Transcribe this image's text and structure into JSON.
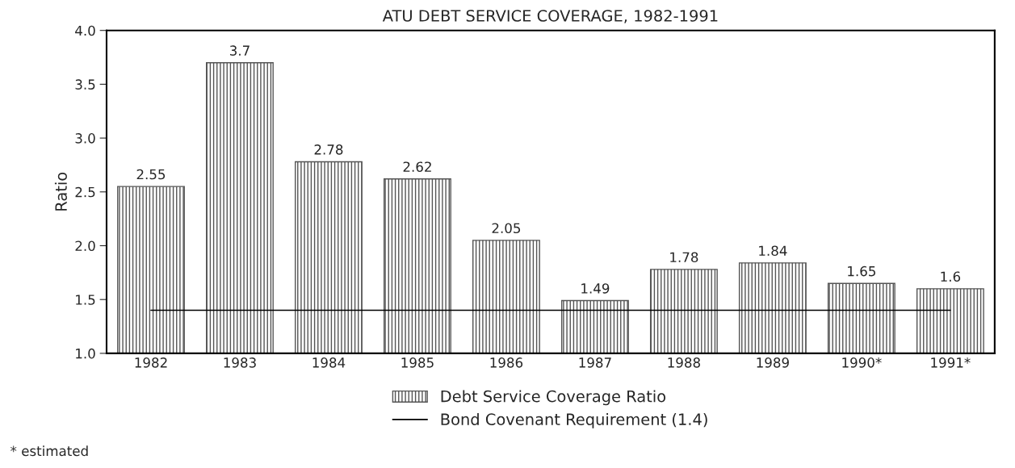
{
  "chart_data": {
    "type": "bar",
    "title": "ATU DEBT SERVICE COVERAGE, 1982-1991",
    "ylabel": "Ratio",
    "categories": [
      "1982",
      "1983",
      "1984",
      "1985",
      "1986",
      "1987",
      "1988",
      "1989",
      "1990*",
      "1991*"
    ],
    "series": [
      {
        "name": "Debt Service Coverage Ratio",
        "color": "#555555",
        "values": [
          2.55,
          3.7,
          2.78,
          2.62,
          2.05,
          1.49,
          1.78,
          1.84,
          1.65,
          1.6
        ],
        "value_labels": [
          "2.55",
          "3.7",
          "2.78",
          "2.62",
          "2.05",
          "1.49",
          "1.78",
          "1.84",
          "1.65",
          "1.6"
        ]
      },
      {
        "name": "Bond Covenant Requirement (1.4)",
        "type": "line",
        "color": "#000000",
        "values": [
          1.4,
          1.4,
          1.4,
          1.4,
          1.4,
          1.4,
          1.4,
          1.4,
          1.4,
          1.4
        ]
      }
    ],
    "ylim": [
      1,
      4
    ],
    "yticks": [
      {
        "value": 1,
        "label": "1.0"
      },
      {
        "value": 1.5,
        "label": "1.5"
      },
      {
        "value": 2,
        "label": "2.0"
      },
      {
        "value": 2.5,
        "label": "2.5"
      },
      {
        "value": 3,
        "label": "3.0"
      },
      {
        "value": 3.5,
        "label": "3.5"
      },
      {
        "value": 4,
        "label": "4.0"
      }
    ],
    "grid": false,
    "legend": "bottom",
    "annotations": [
      "* estimated"
    ]
  }
}
